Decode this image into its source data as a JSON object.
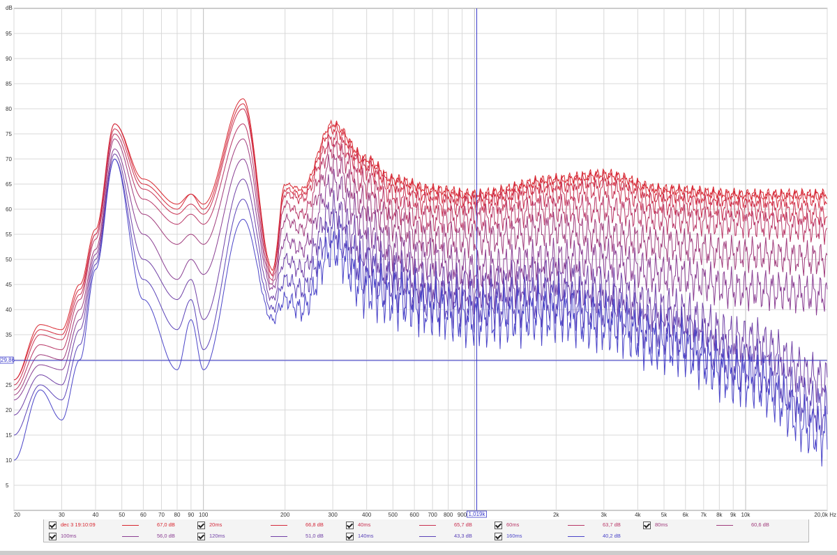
{
  "chart_data": {
    "type": "line",
    "x_scale": "log",
    "xlim": [
      20,
      20000
    ],
    "ylim": [
      0,
      100
    ],
    "ylabel": "dB",
    "x_unit": "Hz",
    "grid": true,
    "y_ticks": [
      5,
      10,
      15,
      20,
      25,
      30,
      35,
      40,
      45,
      50,
      55,
      60,
      65,
      70,
      75,
      80,
      85,
      90,
      95
    ],
    "x_tick_labels": [
      {
        "v": 20,
        "t": "20"
      },
      {
        "v": 30,
        "t": "30"
      },
      {
        "v": 40,
        "t": "40"
      },
      {
        "v": 50,
        "t": "50"
      },
      {
        "v": 60,
        "t": "60"
      },
      {
        "v": 70,
        "t": "70"
      },
      {
        "v": 80,
        "t": "80"
      },
      {
        "v": 90,
        "t": "90"
      },
      {
        "v": 100,
        "t": "100"
      },
      {
        "v": 200,
        "t": "200"
      },
      {
        "v": 300,
        "t": "300"
      },
      {
        "v": 400,
        "t": "400"
      },
      {
        "v": 500,
        "t": "500"
      },
      {
        "v": 600,
        "t": "600"
      },
      {
        "v": 700,
        "t": "700"
      },
      {
        "v": 800,
        "t": "800"
      },
      {
        "v": 900,
        "t": "900"
      },
      {
        "v": 2000,
        "t": "2k"
      },
      {
        "v": 3000,
        "t": "3k"
      },
      {
        "v": 4000,
        "t": "4k"
      },
      {
        "v": 5000,
        "t": "5k"
      },
      {
        "v": 6000,
        "t": "6k"
      },
      {
        "v": 7000,
        "t": "7k"
      },
      {
        "v": 8000,
        "t": "8k"
      },
      {
        "v": 9000,
        "t": "9k"
      },
      {
        "v": 10000,
        "t": "10k"
      },
      {
        "v": 20000,
        "t": "20,0k Hz"
      }
    ],
    "cursor": {
      "x": 1019,
      "x_label": "1,019k",
      "y": 29.86,
      "y_label": "29,86"
    },
    "series": [
      {
        "name": "dec 3 19:10:09",
        "value_label": "67,0 dB",
        "color": "#d8252e",
        "x": [
          20,
          25,
          30,
          35,
          40,
          47,
          60,
          80,
          90,
          100,
          140,
          180,
          200,
          230,
          300,
          400,
          500,
          700,
          1000,
          2000,
          3000,
          5000,
          10000,
          20000
        ],
        "y": [
          26,
          37,
          36,
          45,
          56,
          77,
          66,
          61,
          63,
          61,
          82,
          48,
          65,
          64,
          77,
          70,
          66,
          64,
          63,
          66,
          67,
          64,
          63,
          63
        ]
      },
      {
        "name": "20ms",
        "value_label": "66,8 dB",
        "color": "#d42a3c",
        "x": [
          20,
          25,
          30,
          35,
          40,
          47,
          60,
          80,
          90,
          100,
          140,
          180,
          200,
          230,
          300,
          400,
          500,
          700,
          1000,
          2000,
          3000,
          5000,
          10000,
          20000
        ],
        "y": [
          26,
          36,
          35,
          44,
          55,
          77,
          65,
          60,
          63,
          60,
          81,
          47,
          64,
          63,
          76,
          69,
          65,
          63,
          62,
          65,
          66,
          63,
          62,
          62
        ]
      },
      {
        "name": "40ms",
        "value_label": "65,7 dB",
        "color": "#c83050",
        "x": [
          20,
          25,
          30,
          35,
          40,
          47,
          60,
          80,
          90,
          100,
          140,
          180,
          200,
          230,
          300,
          400,
          500,
          700,
          1000,
          2000,
          3000,
          5000,
          10000,
          20000
        ],
        "y": [
          25,
          35,
          34,
          43,
          55,
          76,
          64,
          59,
          61,
          59,
          80,
          47,
          63,
          62,
          74,
          68,
          63,
          61,
          61,
          63,
          64,
          61,
          60,
          59
        ]
      },
      {
        "name": "60ms",
        "value_label": "63,7 dB",
        "color": "#b83666",
        "x": [
          20,
          25,
          30,
          35,
          40,
          47,
          60,
          80,
          90,
          100,
          140,
          180,
          200,
          230,
          300,
          400,
          500,
          700,
          1000,
          2000,
          3000,
          5000,
          10000,
          20000
        ],
        "y": [
          24,
          33,
          32,
          42,
          54,
          75,
          62,
          57,
          59,
          57,
          77,
          46,
          61,
          59,
          72,
          65,
          60,
          58,
          58,
          60,
          60,
          58,
          57,
          56
        ]
      },
      {
        "name": "80ms",
        "value_label": "60,6 dB",
        "color": "#a03c7c",
        "x": [
          20,
          25,
          30,
          35,
          40,
          47,
          60,
          80,
          90,
          100,
          140,
          180,
          200,
          230,
          300,
          400,
          500,
          700,
          1000,
          2000,
          3000,
          5000,
          10000,
          20000
        ],
        "y": [
          23,
          31,
          30,
          40,
          52,
          74,
          59,
          53,
          55,
          53,
          74,
          45,
          58,
          56,
          69,
          61,
          57,
          54,
          54,
          56,
          55,
          53,
          51,
          50
        ]
      },
      {
        "name": "100ms",
        "value_label": "56,0 dB",
        "color": "#8a3e92",
        "x": [
          20,
          25,
          30,
          35,
          40,
          47,
          60,
          80,
          90,
          100,
          140,
          180,
          200,
          230,
          300,
          400,
          500,
          700,
          1000,
          2000,
          3000,
          5000,
          10000,
          20000
        ],
        "y": [
          22,
          29,
          28,
          38,
          51,
          72,
          55,
          46,
          50,
          47,
          70,
          44,
          54,
          52,
          65,
          57,
          52,
          50,
          48,
          50,
          50,
          47,
          44,
          43
        ]
      },
      {
        "name": "120ms",
        "value_label": "51,0 dB",
        "color": "#7040a6",
        "x": [
          20,
          25,
          30,
          35,
          40,
          47,
          60,
          80,
          90,
          100,
          140,
          180,
          200,
          230,
          300,
          400,
          500,
          700,
          1000,
          2000,
          3000,
          5000,
          10000,
          20000
        ],
        "y": [
          19,
          27,
          25,
          36,
          50,
          71,
          50,
          42,
          46,
          38,
          66,
          42,
          50,
          48,
          60,
          52,
          48,
          45,
          44,
          46,
          44,
          40,
          34,
          26
        ]
      },
      {
        "name": "140ms",
        "value_label": "43,3 dB",
        "color": "#5a42b8",
        "x": [
          20,
          25,
          30,
          35,
          40,
          47,
          60,
          80,
          90,
          100,
          140,
          180,
          200,
          230,
          300,
          400,
          500,
          700,
          1000,
          2000,
          3000,
          5000,
          10000,
          20000
        ],
        "y": [
          15,
          25,
          22,
          33,
          49,
          70,
          46,
          36,
          42,
          32,
          62,
          40,
          46,
          44,
          56,
          48,
          45,
          42,
          41,
          42,
          40,
          36,
          29,
          20
        ]
      },
      {
        "name": "160ms",
        "value_label": "40,2 dB",
        "color": "#4a44c8",
        "x": [
          20,
          25,
          30,
          35,
          40,
          47,
          60,
          80,
          90,
          100,
          140,
          180,
          200,
          230,
          300,
          400,
          500,
          700,
          1000,
          2000,
          3000,
          5000,
          10000,
          20000
        ],
        "y": [
          10,
          24,
          18,
          30,
          48,
          70,
          42,
          28,
          38,
          28,
          58,
          38,
          42,
          40,
          52,
          44,
          42,
          40,
          38,
          39,
          37,
          33,
          26,
          15
        ]
      }
    ]
  }
}
